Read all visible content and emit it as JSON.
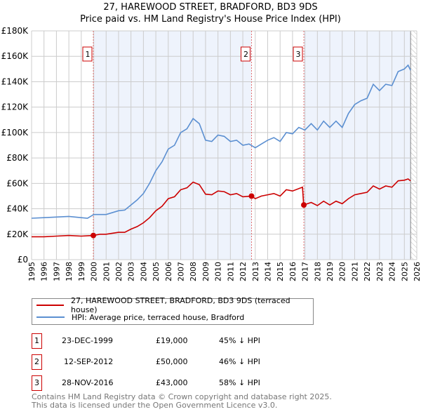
{
  "title": "27, HAREWOOD STREET, BRADFORD, BD3 9DS",
  "subtitle": "Price paid vs. HM Land Registry's House Price Index (HPI)",
  "colors": {
    "property": "#cc0000",
    "hpi": "#5b8fd1",
    "shade": "#eef3fc",
    "grid": "#cccccc"
  },
  "chart_data": {
    "type": "line",
    "title": "27, HAREWOOD STREET, BRADFORD, BD3 9DS",
    "subtitle": "Price paid vs. HM Land Registry's House Price Index (HPI)",
    "xlim": [
      1995,
      2026
    ],
    "ylim": [
      0,
      180000
    ],
    "x_ticks": [
      "1995",
      "1996",
      "1997",
      "1998",
      "1999",
      "2000",
      "2001",
      "2002",
      "2003",
      "2004",
      "2005",
      "2006",
      "2007",
      "2008",
      "2009",
      "2010",
      "2011",
      "2012",
      "2013",
      "2014",
      "2015",
      "2016",
      "2017",
      "2018",
      "2019",
      "2020",
      "2021",
      "2022",
      "2023",
      "2024",
      "2025",
      "2026"
    ],
    "y_ticks": [
      {
        "value": 0,
        "label": "£0"
      },
      {
        "value": 20000,
        "label": "£20K"
      },
      {
        "value": 40000,
        "label": "£40K"
      },
      {
        "value": 60000,
        "label": "£60K"
      },
      {
        "value": 80000,
        "label": "£80K"
      },
      {
        "value": 100000,
        "label": "£100K"
      },
      {
        "value": 120000,
        "label": "£120K"
      },
      {
        "value": 140000,
        "label": "£140K"
      },
      {
        "value": 160000,
        "label": "£160K"
      },
      {
        "value": 180000,
        "label": "£180K"
      }
    ],
    "grid": true,
    "forecast_hatch_from": 2025.5,
    "series": [
      {
        "name": "27, HAREWOOD STREET, BRADFORD, BD3 9DS (terraced house)",
        "color": "#cc0000",
        "x": [
          1995,
          1996,
          1997,
          1998,
          1999,
          1999.97,
          2000.5,
          2001,
          2002,
          2002.5,
          2003,
          2003.5,
          2004,
          2004.5,
          2005,
          2005.5,
          2006,
          2006.5,
          2007,
          2007.5,
          2008,
          2008.5,
          2009,
          2009.5,
          2010,
          2010.5,
          2011,
          2011.5,
          2012,
          2012.7,
          2013,
          2013.5,
          2014,
          2014.5,
          2015,
          2015.5,
          2016,
          2016.8,
          2016.9,
          2017.5,
          2018,
          2018.5,
          2019,
          2019.5,
          2020,
          2020.5,
          2021,
          2021.5,
          2022,
          2022.5,
          2023,
          2023.5,
          2024,
          2024.5,
          2025,
          2025.3,
          2025.5
        ],
        "y": [
          18000,
          18000,
          18500,
          19000,
          18500,
          19000,
          20000,
          20000,
          21500,
          21500,
          24000,
          26000,
          29000,
          33000,
          38500,
          42000,
          48000,
          49500,
          55000,
          56500,
          61000,
          59000,
          51500,
          51000,
          54000,
          53500,
          51000,
          52000,
          49500,
          50000,
          48000,
          50000,
          51000,
          52000,
          50000,
          55000,
          54000,
          57000,
          43000,
          45000,
          42500,
          46000,
          43000,
          46000,
          44000,
          48000,
          51000,
          52000,
          53000,
          58000,
          55500,
          58000,
          57000,
          62000,
          62500,
          63500,
          62000
        ]
      },
      {
        "name": "HPI: Average price, terraced house, Bradford",
        "color": "#5b8fd1",
        "x": [
          1995,
          1996,
          1997,
          1998,
          1999,
          1999.5,
          2000,
          2001,
          2002,
          2002.5,
          2003,
          2003.5,
          2004,
          2004.5,
          2005,
          2005.5,
          2006,
          2006.5,
          2007,
          2007.5,
          2008,
          2008.5,
          2009,
          2009.5,
          2010,
          2010.5,
          2011,
          2011.5,
          2012,
          2012.5,
          2013,
          2013.5,
          2014,
          2014.5,
          2015,
          2015.5,
          2016,
          2016.5,
          2017,
          2017.5,
          2018,
          2018.5,
          2019,
          2019.5,
          2020,
          2020.5,
          2021,
          2021.5,
          2022,
          2022.5,
          2023,
          2023.5,
          2024,
          2024.5,
          2025,
          2025.3,
          2025.5
        ],
        "y": [
          32600,
          33000,
          33500,
          34000,
          33000,
          32500,
          35500,
          35500,
          38500,
          39000,
          43000,
          47000,
          52000,
          60000,
          70000,
          77000,
          87000,
          90000,
          100000,
          103000,
          111000,
          107000,
          94000,
          93000,
          98000,
          97000,
          93000,
          94000,
          90000,
          91000,
          88000,
          91000,
          94000,
          96000,
          93000,
          100000,
          99000,
          104000,
          102000,
          107000,
          102000,
          109000,
          104000,
          109000,
          104000,
          115000,
          122000,
          125000,
          127000,
          138000,
          133000,
          138000,
          137000,
          148000,
          150000,
          153000,
          149000
        ]
      }
    ],
    "sales": [
      {
        "label": "1",
        "x": 1999.97,
        "y": 19000,
        "date": "23-DEC-1999",
        "price": "£19,000",
        "hpi": "45% ↓ HPI"
      },
      {
        "label": "2",
        "x": 2012.7,
        "y": 50000,
        "date": "12-SEP-2012",
        "price": "£50,000",
        "hpi": "46% ↓ HPI"
      },
      {
        "label": "3",
        "x": 2016.91,
        "y": 43000,
        "date": "28-NOV-2016",
        "price": "£43,000",
        "hpi": "58% ↓ HPI"
      }
    ]
  },
  "legend": {
    "property": "27, HAREWOOD STREET, BRADFORD, BD3 9DS (terraced house)",
    "hpi": "HPI: Average price, terraced house, Bradford"
  },
  "footer": {
    "line1": "Contains HM Land Registry data © Crown copyright and database right 2025.",
    "line2": "This data is licensed under the Open Government Licence v3.0."
  }
}
